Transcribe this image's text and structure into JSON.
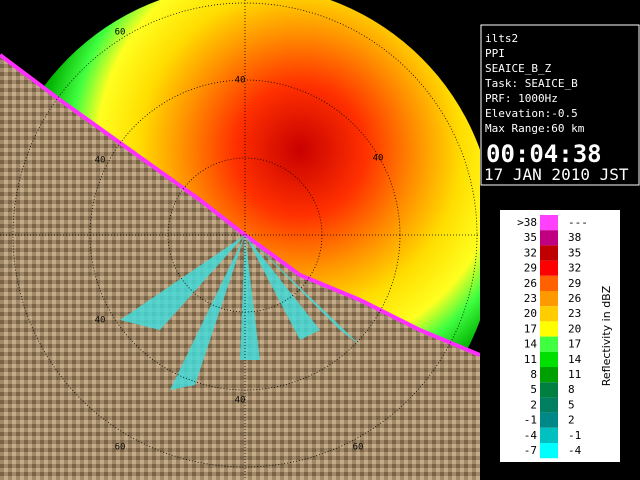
{
  "info": {
    "lines": [
      "ilts2",
      "PPI",
      "SEAICE_B_Z",
      "Task: SEAICE_B",
      "PRF: 1000Hz",
      "Elevation:-0.5",
      "Max Range:60 km"
    ],
    "time": "00:04:38",
    "date": "17 JAN 2010 JST"
  },
  "legend": {
    "title": "Reflectivity in dBZ",
    "rows": [
      {
        "low": ">38",
        "high": "---",
        "color": "#ff40ff"
      },
      {
        "low": "35",
        "high": "38",
        "color": "#c00080"
      },
      {
        "low": "32",
        "high": "35",
        "color": "#c00000"
      },
      {
        "low": "29",
        "high": "32",
        "color": "#ff0000"
      },
      {
        "low": "26",
        "high": "29",
        "color": "#ff6000"
      },
      {
        "low": "23",
        "high": "26",
        "color": "#ff9900"
      },
      {
        "low": "20",
        "high": "23",
        "color": "#ffcc00"
      },
      {
        "low": "17",
        "high": "20",
        "color": "#ffff00"
      },
      {
        "low": "14",
        "high": "17",
        "color": "#40ff40"
      },
      {
        "low": "11",
        "high": "14",
        "color": "#00e000"
      },
      {
        "low": "8",
        "high": "11",
        "color": "#00a000"
      },
      {
        "low": "5",
        "high": "8",
        "color": "#008040"
      },
      {
        "low": "2",
        "high": "5",
        "color": "#008060"
      },
      {
        "low": "-1",
        "high": "2",
        "color": "#008888"
      },
      {
        "low": "-4",
        "high": "-1",
        "color": "#00c0c0"
      },
      {
        "low": "-7",
        "high": "-4",
        "color": "#00ffff"
      }
    ]
  },
  "ring_labels": [
    "60",
    "40",
    "40",
    "40",
    "40",
    "40",
    "60",
    "60"
  ]
}
